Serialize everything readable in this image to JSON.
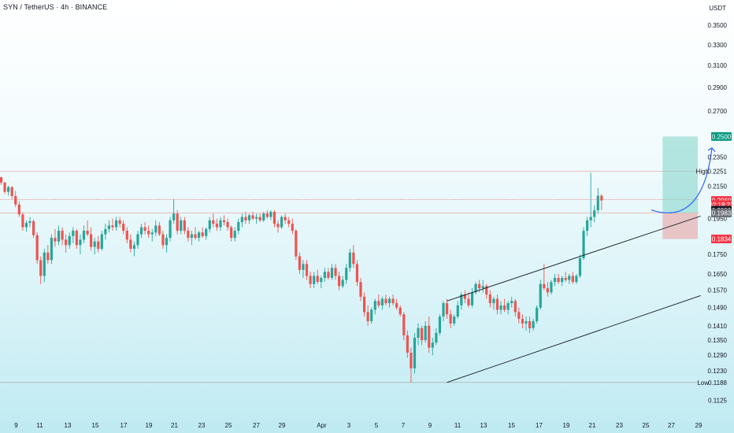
{
  "header": {
    "title": "SYN / TetherUS · 4h · BINANCE",
    "currency": "USDT"
  },
  "colors": {
    "up": "#26a69a",
    "down": "#ef5350",
    "target_zone": "#7fd4c8",
    "stop_zone": "#e7b7b9",
    "arrow": "#2962ff",
    "channel": "#131722"
  },
  "chart_data": {
    "type": "candlestick",
    "ylim": [
      0.1095,
      0.362
    ],
    "y_scale": "log",
    "y_ticks": [
      "0.3500",
      "0.3300",
      "0.3100",
      "0.2900",
      "0.2700",
      "0.2350",
      "0.2251",
      "0.2150",
      "0.1950",
      "0.1750",
      "0.1650",
      "0.1570",
      "0.1490",
      "0.1410",
      "0.1350",
      "0.1290",
      "0.1230",
      "0.1125"
    ],
    "x_ticks": [
      "9",
      "11",
      "13",
      "15",
      "17",
      "19",
      "21",
      "23",
      "25",
      "27",
      "29",
      "Apr",
      "3",
      "5",
      "7",
      "9",
      "11",
      "13",
      "15",
      "17",
      "19",
      "21",
      "23",
      "25",
      "27",
      "29"
    ],
    "price_tags": [
      {
        "label": "0.2500",
        "value": 0.25,
        "style": "teal"
      },
      {
        "label": "0.2060",
        "value": 0.206,
        "style": "red"
      },
      {
        "label": "02:18:23",
        "value": 0.2035,
        "style": "red"
      },
      {
        "label": "0.2000",
        "value": 0.2,
        "style": "dark"
      },
      {
        "label": "0.1983",
        "value": 0.1983,
        "style": "gray"
      },
      {
        "label": "0.1834",
        "value": 0.1834,
        "style": "red"
      }
    ],
    "high": {
      "label": "High",
      "value": 0.2251
    },
    "low": {
      "label": "Low",
      "value": 0.1188
    },
    "annotations": {
      "channel_upper": {
        "from": {
          "x": "7 Apr",
          "y": 0.152
        },
        "to": {
          "x": "25 Apr",
          "y": 0.1965
        }
      },
      "channel_lower": {
        "from": {
          "x": "7 Apr",
          "y": 0.1188
        },
        "to": {
          "x": "25 Apr",
          "y": 0.1545
        }
      },
      "target_zone": {
        "x_start": "22 Apr",
        "x_end": "28 Apr",
        "y_low": 0.1983,
        "y_high": 0.25
      },
      "stop_zone": {
        "x_start": "22 Apr",
        "x_end": "28 Apr",
        "y_low": 0.1834,
        "y_high": 0.1983
      },
      "projection_arrow": {
        "from": {
          "x": "22 Apr",
          "y": 0.2002
        },
        "to": {
          "x": "26 Apr",
          "y": 0.2415
        }
      }
    },
    "candles": [
      [
        0.221,
        0.2214,
        0.216,
        0.2175
      ],
      [
        0.2175,
        0.218,
        0.21,
        0.2115
      ],
      [
        0.2115,
        0.2155,
        0.209,
        0.2145
      ],
      [
        0.2145,
        0.215,
        0.207,
        0.2088
      ],
      [
        0.2088,
        0.212,
        0.202,
        0.2035
      ],
      [
        0.2035,
        0.2055,
        0.196,
        0.1975
      ],
      [
        0.1975,
        0.1985,
        0.188,
        0.19
      ],
      [
        0.19,
        0.194,
        0.1875,
        0.1925
      ],
      [
        0.1925,
        0.196,
        0.19,
        0.1935
      ],
      [
        0.1935,
        0.1945,
        0.184,
        0.1855
      ],
      [
        0.1855,
        0.1872,
        0.17,
        0.172
      ],
      [
        0.172,
        0.174,
        0.16,
        0.164
      ],
      [
        0.164,
        0.178,
        0.161,
        0.176
      ],
      [
        0.176,
        0.18,
        0.17,
        0.172
      ],
      [
        0.172,
        0.186,
        0.17,
        0.184
      ],
      [
        0.184,
        0.189,
        0.179,
        0.182
      ],
      [
        0.182,
        0.191,
        0.18,
        0.188
      ],
      [
        0.188,
        0.19,
        0.18,
        0.183
      ],
      [
        0.183,
        0.186,
        0.176,
        0.18
      ],
      [
        0.18,
        0.187,
        0.178,
        0.185
      ],
      [
        0.185,
        0.19,
        0.181,
        0.188
      ],
      [
        0.188,
        0.189,
        0.178,
        0.18
      ],
      [
        0.18,
        0.186,
        0.175,
        0.183
      ],
      [
        0.183,
        0.191,
        0.181,
        0.188
      ],
      [
        0.188,
        0.194,
        0.185,
        0.186
      ],
      [
        0.186,
        0.19,
        0.177,
        0.179
      ],
      [
        0.179,
        0.184,
        0.175,
        0.182
      ],
      [
        0.182,
        0.185,
        0.176,
        0.178
      ],
      [
        0.178,
        0.188,
        0.177,
        0.186
      ],
      [
        0.186,
        0.192,
        0.183,
        0.189
      ],
      [
        0.189,
        0.194,
        0.187,
        0.191
      ],
      [
        0.191,
        0.195,
        0.188,
        0.19
      ],
      [
        0.19,
        0.196,
        0.188,
        0.194
      ],
      [
        0.194,
        0.196,
        0.19,
        0.192
      ],
      [
        0.192,
        0.194,
        0.186,
        0.188
      ],
      [
        0.188,
        0.19,
        0.181,
        0.183
      ],
      [
        0.183,
        0.186,
        0.176,
        0.178
      ],
      [
        0.178,
        0.182,
        0.174,
        0.18
      ],
      [
        0.18,
        0.188,
        0.178,
        0.186
      ],
      [
        0.186,
        0.192,
        0.184,
        0.19
      ],
      [
        0.19,
        0.193,
        0.186,
        0.188
      ],
      [
        0.188,
        0.191,
        0.184,
        0.186
      ],
      [
        0.186,
        0.189,
        0.182,
        0.187
      ],
      [
        0.187,
        0.194,
        0.185,
        0.191
      ],
      [
        0.191,
        0.193,
        0.185,
        0.186
      ],
      [
        0.186,
        0.188,
        0.178,
        0.18
      ],
      [
        0.18,
        0.186,
        0.176,
        0.184
      ],
      [
        0.184,
        0.196,
        0.182,
        0.194
      ],
      [
        0.194,
        0.207,
        0.192,
        0.198
      ],
      [
        0.198,
        0.2,
        0.186,
        0.188
      ],
      [
        0.188,
        0.196,
        0.186,
        0.194
      ],
      [
        0.194,
        0.196,
        0.186,
        0.188
      ],
      [
        0.188,
        0.19,
        0.182,
        0.184
      ],
      [
        0.184,
        0.188,
        0.18,
        0.186
      ],
      [
        0.186,
        0.19,
        0.183,
        0.184
      ],
      [
        0.184,
        0.188,
        0.182,
        0.187
      ],
      [
        0.187,
        0.19,
        0.184,
        0.185
      ],
      [
        0.185,
        0.19,
        0.183,
        0.189
      ],
      [
        0.189,
        0.196,
        0.187,
        0.194
      ],
      [
        0.194,
        0.198,
        0.19,
        0.192
      ],
      [
        0.192,
        0.195,
        0.188,
        0.19
      ],
      [
        0.19,
        0.196,
        0.188,
        0.194
      ],
      [
        0.194,
        0.197,
        0.191,
        0.193
      ],
      [
        0.193,
        0.195,
        0.188,
        0.19
      ],
      [
        0.19,
        0.191,
        0.182,
        0.184
      ],
      [
        0.184,
        0.19,
        0.182,
        0.188
      ],
      [
        0.188,
        0.195,
        0.186,
        0.193
      ],
      [
        0.193,
        0.198,
        0.19,
        0.196
      ],
      [
        0.196,
        0.199,
        0.192,
        0.194
      ],
      [
        0.194,
        0.198,
        0.192,
        0.197
      ],
      [
        0.197,
        0.199,
        0.194,
        0.195
      ],
      [
        0.195,
        0.198,
        0.192,
        0.196
      ],
      [
        0.196,
        0.198,
        0.193,
        0.194
      ],
      [
        0.194,
        0.199,
        0.193,
        0.198
      ],
      [
        0.198,
        0.2,
        0.195,
        0.196
      ],
      [
        0.196,
        0.2,
        0.194,
        0.199
      ],
      [
        0.199,
        0.2,
        0.19,
        0.192
      ],
      [
        0.192,
        0.194,
        0.187,
        0.19
      ],
      [
        0.19,
        0.197,
        0.189,
        0.196
      ],
      [
        0.196,
        0.198,
        0.192,
        0.194
      ],
      [
        0.194,
        0.196,
        0.19,
        0.192
      ],
      [
        0.192,
        0.195,
        0.186,
        0.188
      ],
      [
        0.188,
        0.189,
        0.172,
        0.174
      ],
      [
        0.174,
        0.176,
        0.165,
        0.167
      ],
      [
        0.167,
        0.172,
        0.163,
        0.17
      ],
      [
        0.17,
        0.172,
        0.162,
        0.164
      ],
      [
        0.164,
        0.166,
        0.158,
        0.16
      ],
      [
        0.16,
        0.166,
        0.158,
        0.164
      ],
      [
        0.164,
        0.167,
        0.16,
        0.161
      ],
      [
        0.161,
        0.164,
        0.158,
        0.163
      ],
      [
        0.163,
        0.168,
        0.161,
        0.166
      ],
      [
        0.166,
        0.168,
        0.162,
        0.163
      ],
      [
        0.163,
        0.17,
        0.162,
        0.168
      ],
      [
        0.168,
        0.17,
        0.162,
        0.164
      ],
      [
        0.164,
        0.166,
        0.157,
        0.159
      ],
      [
        0.159,
        0.164,
        0.158,
        0.162
      ],
      [
        0.162,
        0.17,
        0.16,
        0.168
      ],
      [
        0.168,
        0.178,
        0.166,
        0.176
      ],
      [
        0.176,
        0.18,
        0.168,
        0.17
      ],
      [
        0.17,
        0.172,
        0.159,
        0.161
      ],
      [
        0.161,
        0.163,
        0.152,
        0.154
      ],
      [
        0.154,
        0.156,
        0.145,
        0.147
      ],
      [
        0.147,
        0.15,
        0.141,
        0.143
      ],
      [
        0.143,
        0.149,
        0.142,
        0.148
      ],
      [
        0.148,
        0.153,
        0.146,
        0.152
      ],
      [
        0.152,
        0.155,
        0.149,
        0.15
      ],
      [
        0.15,
        0.154,
        0.148,
        0.153
      ],
      [
        0.153,
        0.155,
        0.15,
        0.151
      ],
      [
        0.151,
        0.154,
        0.149,
        0.153
      ],
      [
        0.153,
        0.155,
        0.15,
        0.151
      ],
      [
        0.151,
        0.153,
        0.148,
        0.149
      ],
      [
        0.149,
        0.15,
        0.145,
        0.146
      ],
      [
        0.146,
        0.147,
        0.135,
        0.137
      ],
      [
        0.137,
        0.139,
        0.128,
        0.13
      ],
      [
        0.13,
        0.132,
        0.1188,
        0.124
      ],
      [
        0.124,
        0.138,
        0.122,
        0.136
      ],
      [
        0.136,
        0.142,
        0.133,
        0.14
      ],
      [
        0.14,
        0.141,
        0.133,
        0.135
      ],
      [
        0.135,
        0.143,
        0.134,
        0.141
      ],
      [
        0.141,
        0.145,
        0.13,
        0.132
      ],
      [
        0.132,
        0.136,
        0.129,
        0.134
      ],
      [
        0.134,
        0.14,
        0.133,
        0.138
      ],
      [
        0.138,
        0.146,
        0.137,
        0.145
      ],
      [
        0.145,
        0.152,
        0.143,
        0.151
      ],
      [
        0.151,
        0.153,
        0.144,
        0.146
      ],
      [
        0.146,
        0.148,
        0.14,
        0.142
      ],
      [
        0.142,
        0.146,
        0.141,
        0.145
      ],
      [
        0.145,
        0.152,
        0.144,
        0.15
      ],
      [
        0.15,
        0.156,
        0.148,
        0.155
      ],
      [
        0.155,
        0.157,
        0.151,
        0.153
      ],
      [
        0.153,
        0.156,
        0.149,
        0.15
      ],
      [
        0.15,
        0.158,
        0.149,
        0.156
      ],
      [
        0.156,
        0.161,
        0.155,
        0.16
      ],
      [
        0.16,
        0.162,
        0.156,
        0.158
      ],
      [
        0.158,
        0.162,
        0.156,
        0.159
      ],
      [
        0.159,
        0.16,
        0.153,
        0.155
      ],
      [
        0.155,
        0.157,
        0.149,
        0.151
      ],
      [
        0.151,
        0.154,
        0.148,
        0.153
      ],
      [
        0.153,
        0.155,
        0.146,
        0.148
      ],
      [
        0.148,
        0.152,
        0.146,
        0.15
      ],
      [
        0.15,
        0.153,
        0.147,
        0.148
      ],
      [
        0.148,
        0.152,
        0.146,
        0.151
      ],
      [
        0.151,
        0.154,
        0.149,
        0.152
      ],
      [
        0.152,
        0.153,
        0.145,
        0.147
      ],
      [
        0.147,
        0.149,
        0.142,
        0.144
      ],
      [
        0.144,
        0.146,
        0.14,
        0.142
      ],
      [
        0.142,
        0.145,
        0.139,
        0.143
      ],
      [
        0.143,
        0.145,
        0.138,
        0.14
      ],
      [
        0.14,
        0.144,
        0.139,
        0.143
      ],
      [
        0.143,
        0.15,
        0.142,
        0.149
      ],
      [
        0.149,
        0.162,
        0.148,
        0.16
      ],
      [
        0.16,
        0.17,
        0.157,
        0.158
      ],
      [
        0.158,
        0.161,
        0.154,
        0.156
      ],
      [
        0.156,
        0.162,
        0.155,
        0.161
      ],
      [
        0.161,
        0.165,
        0.159,
        0.163
      ],
      [
        0.163,
        0.165,
        0.16,
        0.161
      ],
      [
        0.161,
        0.164,
        0.159,
        0.163
      ],
      [
        0.163,
        0.166,
        0.161,
        0.162
      ],
      [
        0.162,
        0.165,
        0.16,
        0.164
      ],
      [
        0.164,
        0.166,
        0.16,
        0.161
      ],
      [
        0.161,
        0.165,
        0.16,
        0.164
      ],
      [
        0.164,
        0.175,
        0.163,
        0.173
      ],
      [
        0.173,
        0.19,
        0.172,
        0.188
      ],
      [
        0.188,
        0.196,
        0.185,
        0.194
      ],
      [
        0.194,
        0.224,
        0.19,
        0.196
      ],
      [
        0.196,
        0.203,
        0.193,
        0.2
      ],
      [
        0.2,
        0.214,
        0.198,
        0.209
      ],
      [
        0.209,
        0.21,
        0.2,
        0.206
      ]
    ]
  }
}
